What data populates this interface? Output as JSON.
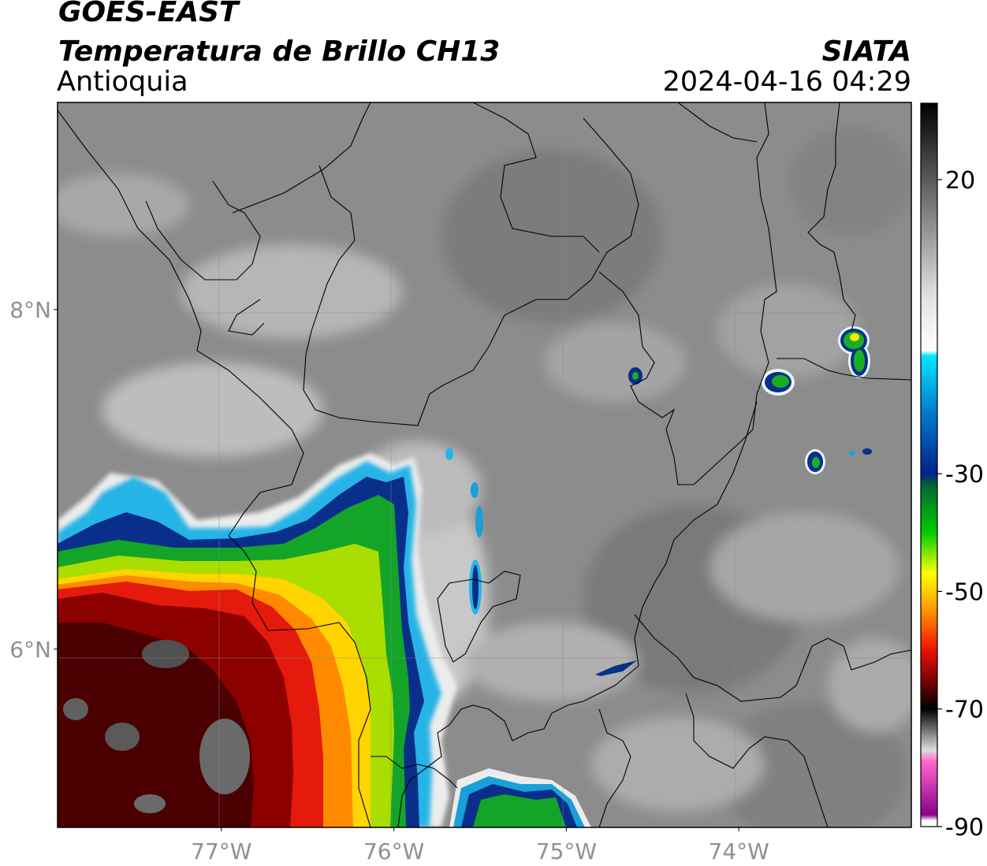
{
  "header": {
    "satellite": "GOES-EAST",
    "product": "Temperatura de Brillo CH13",
    "region": "Antioquia",
    "organization": "SIATA",
    "datetime": "2024-04-16 04:29"
  },
  "axes": {
    "lat_ticks": [
      {
        "value": 8,
        "label": "8°N"
      },
      {
        "value": 6,
        "label": "6°N"
      }
    ],
    "lon_ticks": [
      {
        "value": -77,
        "label": "77°W"
      },
      {
        "value": -76,
        "label": "76°W"
      },
      {
        "value": -75,
        "label": "75°W"
      },
      {
        "value": -74,
        "label": "74°W"
      }
    ],
    "lon_range": [
      -77.95,
      -73.0
    ],
    "lat_range": [
      4.95,
      9.22
    ]
  },
  "colorbar": {
    "ticks": [
      {
        "value": 20,
        "label": "20"
      },
      {
        "value": -30,
        "label": "-30"
      },
      {
        "value": -50,
        "label": "-50"
      },
      {
        "value": -70,
        "label": "-70"
      },
      {
        "value": -90,
        "label": "-90"
      }
    ],
    "range": [
      -90,
      33
    ],
    "stops": [
      {
        "value": 33,
        "color": "#000000"
      },
      {
        "value": 20,
        "color": "#5a5a5a"
      },
      {
        "value": 0,
        "color": "#e2e2e2"
      },
      {
        "value": -9,
        "color": "#ffffff"
      },
      {
        "value": -10,
        "color": "#00e5ff"
      },
      {
        "value": -20,
        "color": "#0077cc"
      },
      {
        "value": -30,
        "color": "#002288"
      },
      {
        "value": -32,
        "color": "#006633"
      },
      {
        "value": -40,
        "color": "#00cc00"
      },
      {
        "value": -47,
        "color": "#ffff00"
      },
      {
        "value": -53,
        "color": "#ff9900"
      },
      {
        "value": -60,
        "color": "#ee1100"
      },
      {
        "value": -66,
        "color": "#660000"
      },
      {
        "value": -70,
        "color": "#000000"
      },
      {
        "value": -77,
        "color": "#dddddd"
      },
      {
        "value": -79,
        "color": "#ff66cc"
      },
      {
        "value": -88,
        "color": "#880088"
      },
      {
        "value": -89,
        "color": "#ffffff"
      }
    ]
  }
}
